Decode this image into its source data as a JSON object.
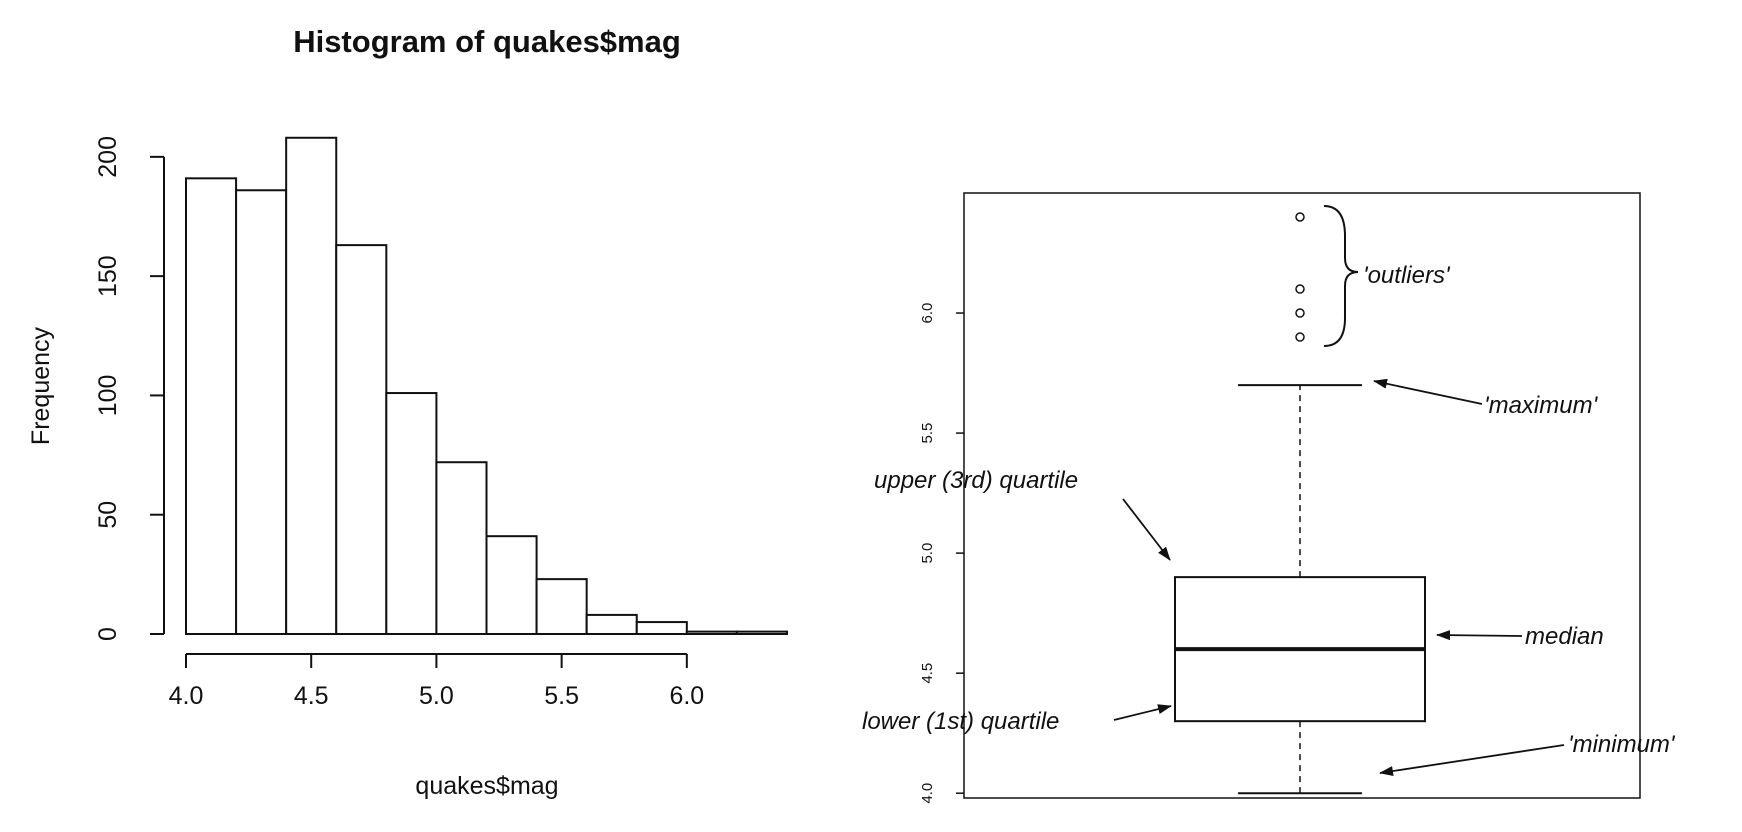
{
  "chart_data": [
    {
      "type": "bar",
      "title": "Histogram of quakes$mag",
      "xlabel": "quakes$mag",
      "ylabel": "Frequency",
      "bins": [
        {
          "from": 4.0,
          "to": 4.2,
          "count": 191
        },
        {
          "from": 4.2,
          "to": 4.4,
          "count": 186
        },
        {
          "from": 4.4,
          "to": 4.6,
          "count": 208
        },
        {
          "from": 4.6,
          "to": 4.8,
          "count": 163
        },
        {
          "from": 4.8,
          "to": 5.0,
          "count": 101
        },
        {
          "from": 5.0,
          "to": 5.2,
          "count": 72
        },
        {
          "from": 5.2,
          "to": 5.4,
          "count": 41
        },
        {
          "from": 5.4,
          "to": 5.6,
          "count": 23
        },
        {
          "from": 5.6,
          "to": 5.8,
          "count": 8
        },
        {
          "from": 5.8,
          "to": 6.0,
          "count": 5
        },
        {
          "from": 6.0,
          "to": 6.2,
          "count": 1
        },
        {
          "from": 6.2,
          "to": 6.4,
          "count": 1
        }
      ],
      "xticks": [
        "4.0",
        "4.5",
        "5.0",
        "5.5",
        "6.0"
      ],
      "yticks": [
        "0",
        "50",
        "100",
        "150",
        "200"
      ],
      "xlim": [
        4.0,
        6.4
      ],
      "ylim": [
        0,
        210
      ],
      "grid": false
    },
    {
      "type": "box",
      "title": "",
      "ylim": [
        3.98,
        6.5
      ],
      "yticks": [
        "4.0",
        "4.5",
        "5.0",
        "5.5",
        "6.0"
      ],
      "stats": {
        "minimum": 4.0,
        "q1": 4.3,
        "median": 4.6,
        "q3": 4.9,
        "maximum": 5.7
      },
      "outliers": [
        5.9,
        6.0,
        6.1,
        6.4
      ],
      "annotations": {
        "outliers": "'outliers'",
        "maximum": "'maximum'",
        "q3": "upper (3rd) quartile",
        "median": "median",
        "q1": "lower (1st) quartile",
        "minimum": "'minimum'"
      },
      "grid": false
    }
  ]
}
